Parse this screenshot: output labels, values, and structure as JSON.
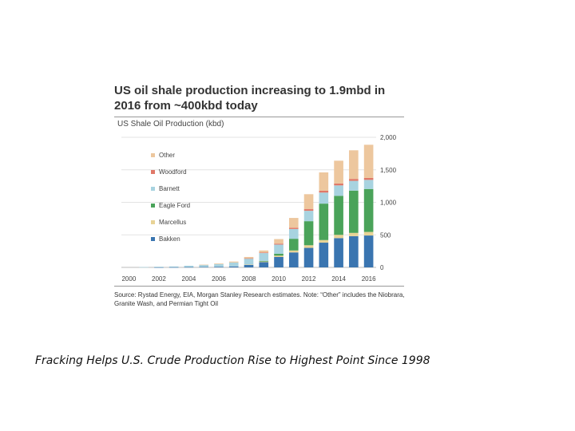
{
  "slide": {
    "headline_line1": "US oil shale production increasing to 1.9mbd in",
    "headline_line2": "2016 from ~400kbd today",
    "source_note": "Source: Rystad Energy, EIA, Morgan Stanley Research estimates. Note: “Other” includes the Niobrara, Granite Wash, and Permian Tight Oil",
    "caption": "Fracking Helps U.S. Crude Production Rise to Highest Point Since 1998"
  },
  "chart_data": {
    "type": "bar",
    "stacked": true,
    "title": "US Shale Oil Production (kbd)",
    "xlabel": "",
    "ylabel": "",
    "ylim": [
      0,
      2000
    ],
    "yticks": [
      0,
      500,
      1000,
      1500,
      2000
    ],
    "ytick_labels": [
      "0",
      "500",
      "1,000",
      "1,500",
      "2,000"
    ],
    "y_axis_side": "right",
    "legend_position": "top-left",
    "categories": [
      "2000",
      "2001",
      "2002",
      "2003",
      "2004",
      "2005",
      "2006",
      "2007",
      "2008",
      "2009",
      "2010",
      "2011",
      "2012",
      "2013",
      "2014",
      "2015",
      "2016"
    ],
    "x_tick_labels": [
      "2000",
      "2002",
      "2004",
      "2006",
      "2008",
      "2010",
      "2012",
      "2014",
      "2016"
    ],
    "series": [
      {
        "name": "Bakken",
        "color": "#3a75b0",
        "values": [
          0,
          0,
          2,
          3,
          5,
          7,
          10,
          15,
          40,
          80,
          160,
          230,
          300,
          380,
          450,
          480,
          490
        ]
      },
      {
        "name": "Marcellus",
        "color": "#e8d396",
        "values": [
          0,
          0,
          0,
          0,
          0,
          0,
          0,
          0,
          5,
          10,
          20,
          30,
          40,
          40,
          50,
          50,
          55
        ]
      },
      {
        "name": "Eagle Ford",
        "color": "#4aa35a",
        "values": [
          0,
          0,
          0,
          0,
          0,
          0,
          0,
          0,
          0,
          10,
          30,
          180,
          370,
          560,
          600,
          650,
          660
        ]
      },
      {
        "name": "Barnett",
        "color": "#a8d3e0",
        "values": [
          0,
          5,
          8,
          12,
          20,
          30,
          40,
          60,
          90,
          120,
          140,
          150,
          160,
          170,
          160,
          150,
          140
        ]
      },
      {
        "name": "Woodford",
        "color": "#e07868",
        "values": [
          0,
          0,
          0,
          0,
          0,
          0,
          0,
          0,
          5,
          10,
          15,
          20,
          25,
          30,
          30,
          30,
          30
        ]
      },
      {
        "name": "Other",
        "color": "#edc79e",
        "values": [
          0,
          0,
          0,
          0,
          0,
          5,
          10,
          15,
          20,
          30,
          70,
          150,
          230,
          280,
          350,
          440,
          510
        ]
      }
    ]
  }
}
